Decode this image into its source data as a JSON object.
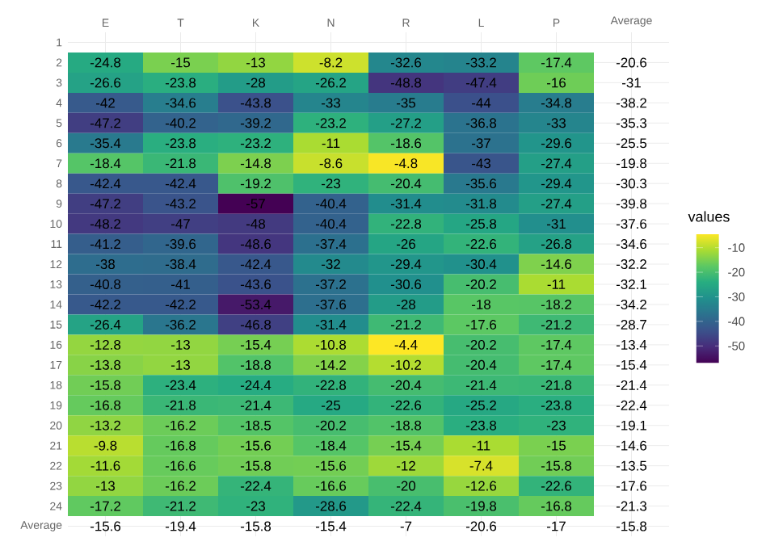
{
  "chart_data": {
    "type": "heatmap",
    "clabel": "values",
    "grid": true,
    "categories": [
      "E",
      "T",
      "K",
      "N",
      "R",
      "L",
      "P",
      "Average"
    ],
    "y_categories": [
      "1",
      "2",
      "3",
      "4",
      "5",
      "6",
      "7",
      "8",
      "9",
      "10",
      "11",
      "12",
      "13",
      "14",
      "15",
      "16",
      "17",
      "18",
      "19",
      "20",
      "21",
      "22",
      "23",
      "24",
      "Average"
    ],
    "cells": [
      [
        null,
        null,
        null,
        null,
        null,
        null,
        null,
        null
      ],
      [
        -24.8,
        -15,
        -13,
        -8.2,
        -32.6,
        -33.2,
        -17.4,
        null
      ],
      [
        -26.6,
        -23.8,
        -28,
        -26.2,
        -48.8,
        -47.4,
        -16,
        null
      ],
      [
        -42,
        -34.6,
        -43.8,
        -33,
        -35,
        -44,
        -34.8,
        null
      ],
      [
        -47.2,
        -40.2,
        -39.2,
        -23.2,
        -27.2,
        -36.8,
        -33,
        null
      ],
      [
        -35.4,
        -23.8,
        -23.2,
        -11,
        -18.6,
        -37,
        -29.6,
        null
      ],
      [
        -18.4,
        -21.8,
        -14.8,
        -8.6,
        -4.8,
        -43,
        -27.4,
        null
      ],
      [
        -42.4,
        -42.4,
        -19.2,
        -23,
        -20.4,
        -35.6,
        -29.4,
        null
      ],
      [
        -47.2,
        -43.2,
        -57,
        -40.4,
        -31.4,
        -31.8,
        -27.4,
        null
      ],
      [
        -48.2,
        -47,
        -48,
        -40.4,
        -22.8,
        -25.8,
        -31,
        null
      ],
      [
        -41.2,
        -39.6,
        -48.6,
        -37.4,
        -26,
        -22.6,
        -26.8,
        null
      ],
      [
        -38,
        -38.4,
        -42.4,
        -32,
        -29.4,
        -30.4,
        -14.6,
        null
      ],
      [
        -40.8,
        -41,
        -43.6,
        -37.2,
        -30.6,
        -20.2,
        -11,
        null
      ],
      [
        -42.2,
        -42.2,
        -53.4,
        -37.6,
        -28,
        -18,
        -18.2,
        null
      ],
      [
        -26.4,
        -36.2,
        -46.8,
        -31.4,
        -21.2,
        -17.6,
        -21.2,
        null
      ],
      [
        -12.8,
        -13,
        -15.4,
        -10.8,
        -4.4,
        -20.2,
        -17.4,
        null
      ],
      [
        -13.8,
        -13,
        -18.8,
        -14.2,
        -10.2,
        -20.4,
        -17.4,
        null
      ],
      [
        -15.8,
        -23.4,
        -24.4,
        -22.8,
        -20.4,
        -21.4,
        -21.8,
        null
      ],
      [
        -16.8,
        -21.8,
        -21.4,
        -25,
        -22.6,
        -25.2,
        -23.8,
        null
      ],
      [
        -13.2,
        -16.2,
        -18.5,
        -20.2,
        -18.8,
        -23.8,
        -23,
        null
      ],
      [
        -9.8,
        -16.8,
        -15.6,
        -18.4,
        -15.4,
        -11,
        -15,
        null
      ],
      [
        -11.6,
        -16.6,
        -15.8,
        -15.6,
        -12,
        -7.4,
        -15.8,
        null
      ],
      [
        -13,
        -16.2,
        -22.4,
        -16.6,
        -20,
        -12.6,
        -22.6,
        null
      ],
      [
        -17.2,
        -21.2,
        -23,
        -28.6,
        -22.4,
        -19.8,
        -16.8,
        null
      ],
      [
        null,
        null,
        null,
        null,
        null,
        null,
        null,
        null
      ]
    ],
    "cell_labels": [
      [
        null,
        null,
        null,
        null,
        null,
        null,
        null,
        null
      ],
      [
        "-24.8",
        "-15",
        "-13",
        "-8.2",
        "-32.6",
        "-33.2",
        "-17.4",
        "-20.6"
      ],
      [
        "-26.6",
        "-23.8",
        "-28",
        "-26.2",
        "-48.8",
        "-47.4",
        "-16",
        "-31"
      ],
      [
        "-42",
        "-34.6",
        "-43.8",
        "-33",
        "-35",
        "-44",
        "-34.8",
        "-38.2"
      ],
      [
        "-47.2",
        "-40.2",
        "-39.2",
        "-23.2",
        "-27.2",
        "-36.8",
        "-33",
        "-35.3"
      ],
      [
        "-35.4",
        "-23.8",
        "-23.2",
        "-11",
        "-18.6",
        "-37",
        "-29.6",
        "-25.5"
      ],
      [
        "-18.4",
        "-21.8",
        "-14.8",
        "-8.6",
        "-4.8",
        "-43",
        "-27.4",
        "-19.8"
      ],
      [
        "-42.4",
        "-42.4",
        "-19.2",
        "-23",
        "-20.4",
        "-35.6",
        "-29.4",
        "-30.3"
      ],
      [
        "-47.2",
        "-43.2",
        "-57",
        "-40.4",
        "-31.4",
        "-31.8",
        "-27.4",
        "-39.8"
      ],
      [
        "-48.2",
        "-47",
        "-48",
        "-40.4",
        "-22.8",
        "-25.8",
        "-31",
        "-37.6"
      ],
      [
        "-41.2",
        "-39.6",
        "-48.6",
        "-37.4",
        "-26",
        "-22.6",
        "-26.8",
        "-34.6"
      ],
      [
        "-38",
        "-38.4",
        "-42.4",
        "-32",
        "-29.4",
        "-30.4",
        "-14.6",
        "-32.2"
      ],
      [
        "-40.8",
        "-41",
        "-43.6",
        "-37.2",
        "-30.6",
        "-20.2",
        "-11",
        "-32.1"
      ],
      [
        "-42.2",
        "-42.2",
        "-53.4",
        "-37.6",
        "-28",
        "-18",
        "-18.2",
        "-34.2"
      ],
      [
        "-26.4",
        "-36.2",
        "-46.8",
        "-31.4",
        "-21.2",
        "-17.6",
        "-21.2",
        "-28.7"
      ],
      [
        "-12.8",
        "-13",
        "-15.4",
        "-10.8",
        "-4.4",
        "-20.2",
        "-17.4",
        "-13.4"
      ],
      [
        "-13.8",
        "-13",
        "-18.8",
        "-14.2",
        "-10.2",
        "-20.4",
        "-17.4",
        "-15.4"
      ],
      [
        "-15.8",
        "-23.4",
        "-24.4",
        "-22.8",
        "-20.4",
        "-21.4",
        "-21.8",
        "-21.4"
      ],
      [
        "-16.8",
        "-21.8",
        "-21.4",
        "-25",
        "-22.6",
        "-25.2",
        "-23.8",
        "-22.4"
      ],
      [
        "-13.2",
        "-16.2",
        "-18.5",
        "-20.2",
        "-18.8",
        "-23.8",
        "-23",
        "-19.1"
      ],
      [
        "-9.8",
        "-16.8",
        "-15.6",
        "-18.4",
        "-15.4",
        "-11",
        "-15",
        "-14.6"
      ],
      [
        "-11.6",
        "-16.6",
        "-15.8",
        "-15.6",
        "-12",
        "-7.4",
        "-15.8",
        "-13.5"
      ],
      [
        "-13",
        "-16.2",
        "-22.4",
        "-16.6",
        "-20",
        "-12.6",
        "-22.6",
        "-17.6"
      ],
      [
        "-17.2",
        "-21.2",
        "-23",
        "-28.6",
        "-22.4",
        "-19.8",
        "-16.8",
        "-21.3"
      ],
      [
        "-15.6",
        "-19.4",
        "-15.8",
        "-15.4",
        "-7",
        "-20.6",
        "-17",
        "-15.8"
      ]
    ],
    "clim": [
      -57,
      -4.4
    ],
    "cticks": [
      -50,
      -40,
      -30,
      -20,
      -10
    ]
  }
}
